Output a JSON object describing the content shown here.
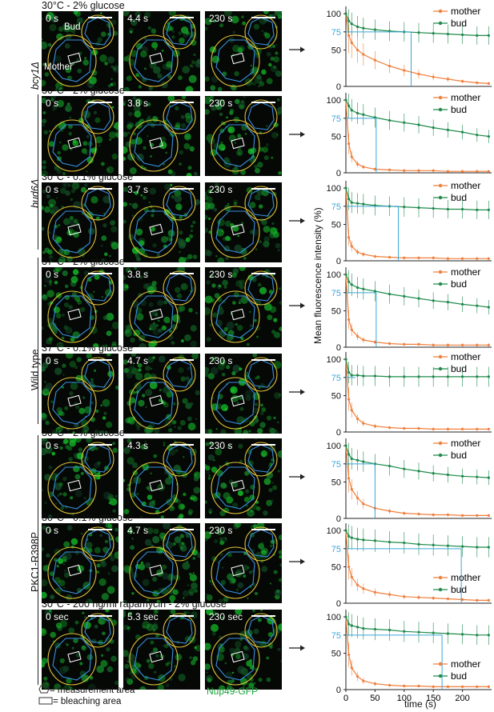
{
  "figure": {
    "microscopy": {
      "labels": {
        "bud": "Bud",
        "mother": "Mother"
      },
      "rows": [
        {
          "condition": "30°C - 2% glucose",
          "times": [
            "0 s",
            "4.4 s",
            "230 s"
          ]
        },
        {
          "condition": "30°C - 2% glucose",
          "times": [
            "0 s",
            "3.8 s",
            "230 s"
          ]
        },
        {
          "condition": "30°C - 0.1% glucose",
          "times": [
            "0 s",
            "3.7 s",
            "230 s"
          ]
        },
        {
          "condition": "37°C - 2% glucose",
          "times": [
            "0 s",
            "3.8 s",
            "230 s"
          ]
        },
        {
          "condition": "37°C - 0.1% glucose",
          "times": [
            "0 s",
            "4.7 s",
            "230 s"
          ]
        },
        {
          "condition": "30°C - 2% glucose",
          "times": [
            "0 s",
            "4.3 s",
            "230 s"
          ]
        },
        {
          "condition": "30°C - 0.1% glucose",
          "times": [
            "0 s",
            "4.7 s",
            "230 s"
          ]
        },
        {
          "condition": "30°C - 200 ng/ml rapamycin - 2% glucose",
          "times": [
            "0 sec",
            "5.3 sec",
            "230 sec"
          ]
        }
      ],
      "genotypes": [
        "bcy1Δ",
        "bud6Δ",
        "Wild type",
        "PKC1-R398P"
      ]
    },
    "legend_notes": {
      "measurement": "= measurement area",
      "bleaching": "= bleaching area",
      "reporter": "Nup49-GFP"
    },
    "colors": {
      "mother": "#f07f3c",
      "bud": "#1f8a4c",
      "marker75": "#3aa6d8",
      "nup": "#1aa33a"
    }
  },
  "chart_data": [
    {
      "type": "line",
      "ylabel": "Mean fluorescence intensity (%)",
      "xlabel": "",
      "yticks": [
        0,
        50,
        75,
        100
      ],
      "ylim": [
        0,
        110
      ],
      "xlim": [
        0,
        250
      ],
      "threshold_time": 112,
      "legend_position": "top-right",
      "series": [
        {
          "name": "mother",
          "x": [
            0,
            5,
            10,
            20,
            30,
            50,
            75,
            100,
            125,
            150,
            175,
            200,
            225,
            245
          ],
          "values": [
            100,
            70,
            60,
            50,
            44,
            36,
            28,
            22,
            17,
            13,
            10,
            7,
            5,
            4
          ]
        },
        {
          "name": "bud",
          "x": [
            0,
            5,
            10,
            20,
            30,
            50,
            75,
            100,
            125,
            150,
            175,
            200,
            225,
            245
          ],
          "values": [
            100,
            90,
            86,
            82,
            80,
            78,
            76,
            75,
            74,
            73,
            72,
            71,
            70,
            70
          ]
        }
      ]
    },
    {
      "type": "line",
      "ylabel": "",
      "xlabel": "",
      "yticks": [
        0,
        50,
        75,
        100
      ],
      "ylim": [
        0,
        110
      ],
      "xlim": [
        0,
        250
      ],
      "threshold_time": 52,
      "legend_position": "top-right",
      "series": [
        {
          "name": "mother",
          "x": [
            0,
            5,
            10,
            20,
            30,
            50,
            75,
            100,
            125,
            150,
            175,
            200,
            225,
            245
          ],
          "values": [
            100,
            40,
            22,
            12,
            8,
            5,
            4,
            3,
            3,
            3,
            2,
            2,
            2,
            2
          ]
        },
        {
          "name": "bud",
          "x": [
            0,
            5,
            10,
            20,
            30,
            50,
            75,
            100,
            125,
            150,
            175,
            200,
            225,
            245
          ],
          "values": [
            100,
            92,
            86,
            82,
            80,
            76,
            72,
            69,
            66,
            62,
            59,
            56,
            52,
            50
          ]
        }
      ]
    },
    {
      "type": "line",
      "ylabel": "",
      "xlabel": "",
      "yticks": [
        0,
        50,
        75,
        100
      ],
      "ylim": [
        0,
        110
      ],
      "xlim": [
        0,
        250
      ],
      "threshold_time": 90,
      "legend_position": "top-right",
      "series": [
        {
          "name": "mother",
          "x": [
            0,
            5,
            10,
            20,
            30,
            50,
            75,
            100,
            125,
            150,
            175,
            200,
            225,
            245
          ],
          "values": [
            100,
            32,
            20,
            12,
            9,
            6,
            5,
            4,
            4,
            4,
            3,
            3,
            3,
            3
          ]
        },
        {
          "name": "bud",
          "x": [
            0,
            5,
            10,
            20,
            30,
            50,
            75,
            100,
            125,
            150,
            175,
            200,
            225,
            245
          ],
          "values": [
            100,
            85,
            80,
            79,
            78,
            76,
            75,
            74,
            73,
            72,
            71,
            71,
            70,
            70
          ]
        }
      ]
    },
    {
      "type": "line",
      "ylabel": "",
      "xlabel": "",
      "yticks": [
        0,
        50,
        75,
        100
      ],
      "ylim": [
        0,
        110
      ],
      "xlim": [
        0,
        250
      ],
      "threshold_time": 52,
      "legend_position": "top-right",
      "series": [
        {
          "name": "mother",
          "x": [
            0,
            5,
            10,
            20,
            30,
            50,
            75,
            100,
            125,
            150,
            175,
            200,
            225,
            245
          ],
          "values": [
            100,
            38,
            24,
            15,
            10,
            7,
            5,
            4,
            4,
            3,
            3,
            3,
            3,
            3
          ]
        },
        {
          "name": "bud",
          "x": [
            0,
            5,
            10,
            20,
            30,
            50,
            75,
            100,
            125,
            150,
            175,
            200,
            225,
            245
          ],
          "values": [
            100,
            90,
            86,
            82,
            80,
            77,
            73,
            70,
            67,
            64,
            62,
            59,
            57,
            55
          ]
        }
      ]
    },
    {
      "type": "line",
      "ylabel": "",
      "xlabel": "",
      "yticks": [
        0,
        50,
        75,
        100
      ],
      "ylim": [
        0,
        110
      ],
      "xlim": [
        0,
        250
      ],
      "threshold_time": null,
      "legend_position": "top-right",
      "series": [
        {
          "name": "mother",
          "x": [
            0,
            5,
            10,
            20,
            30,
            50,
            75,
            100,
            125,
            150,
            175,
            200,
            225,
            245
          ],
          "values": [
            100,
            45,
            30,
            18,
            12,
            8,
            6,
            5,
            5,
            4,
            4,
            4,
            4,
            4
          ]
        },
        {
          "name": "bud",
          "x": [
            0,
            5,
            10,
            20,
            30,
            50,
            75,
            100,
            125,
            150,
            175,
            200,
            225,
            245
          ],
          "values": [
            100,
            82,
            78,
            78,
            77,
            77,
            76,
            76,
            76,
            76,
            76,
            76,
            76,
            76
          ]
        }
      ]
    },
    {
      "type": "line",
      "ylabel": "",
      "xlabel": "",
      "yticks": [
        0,
        50,
        75,
        100
      ],
      "ylim": [
        0,
        110
      ],
      "xlim": [
        0,
        250
      ],
      "threshold_time": 50,
      "legend_position": "top-right",
      "series": [
        {
          "name": "mother",
          "x": [
            0,
            5,
            10,
            20,
            30,
            50,
            75,
            100,
            125,
            150,
            175,
            200,
            225,
            245
          ],
          "values": [
            100,
            55,
            40,
            28,
            20,
            14,
            10,
            7,
            6,
            5,
            5,
            4,
            4,
            4
          ]
        },
        {
          "name": "bud",
          "x": [
            0,
            5,
            10,
            20,
            30,
            50,
            75,
            100,
            125,
            150,
            175,
            200,
            225,
            245
          ],
          "values": [
            100,
            88,
            82,
            80,
            78,
            75,
            72,
            68,
            65,
            62,
            60,
            58,
            57,
            56
          ]
        }
      ]
    },
    {
      "type": "line",
      "ylabel": "",
      "xlabel": "",
      "yticks": [
        0,
        50,
        75,
        100
      ],
      "ylim": [
        0,
        110
      ],
      "xlim": [
        0,
        250
      ],
      "threshold_time": 198,
      "legend_position": "bottom-right",
      "series": [
        {
          "name": "mother",
          "x": [
            0,
            5,
            10,
            20,
            30,
            50,
            75,
            100,
            125,
            150,
            175,
            200,
            225,
            245
          ],
          "values": [
            100,
            50,
            36,
            25,
            20,
            15,
            12,
            9,
            8,
            7,
            6,
            5,
            4,
            4
          ]
        },
        {
          "name": "bud",
          "x": [
            0,
            5,
            10,
            20,
            30,
            50,
            75,
            100,
            125,
            150,
            175,
            200,
            225,
            245
          ],
          "values": [
            100,
            92,
            90,
            88,
            87,
            86,
            84,
            83,
            81,
            80,
            79,
            78,
            77,
            77
          ]
        }
      ]
    },
    {
      "type": "line",
      "ylabel": "",
      "xlabel": "time (s)",
      "yticks": [
        0,
        50,
        75,
        100
      ],
      "ylim": [
        0,
        110
      ],
      "xlim": [
        0,
        250
      ],
      "xticks": [
        0,
        50,
        100,
        150,
        200
      ],
      "threshold_time": 165,
      "legend_position": "bottom-right",
      "series": [
        {
          "name": "mother",
          "x": [
            0,
            5,
            10,
            20,
            30,
            50,
            75,
            100,
            125,
            150,
            175,
            200,
            225,
            245
          ],
          "values": [
            100,
            48,
            30,
            18,
            12,
            8,
            6,
            5,
            5,
            4,
            4,
            4,
            4,
            4
          ]
        },
        {
          "name": "bud",
          "x": [
            0,
            5,
            10,
            20,
            30,
            50,
            75,
            100,
            125,
            150,
            175,
            200,
            225,
            245
          ],
          "values": [
            100,
            90,
            88,
            86,
            84,
            83,
            82,
            80,
            79,
            78,
            77,
            76,
            75,
            75
          ]
        }
      ]
    }
  ]
}
